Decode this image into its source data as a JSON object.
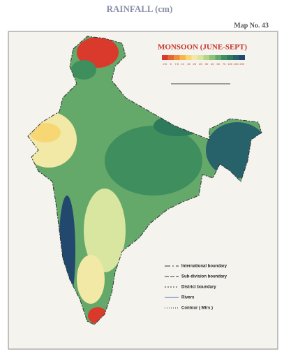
{
  "header": {
    "title": "RAINFALL (cm)",
    "map_number": "Map No. 43"
  },
  "map": {
    "title": "MONSOON (JUNE-SEPT)",
    "scale": [
      {
        "label": "2.5",
        "color": "#d93a2b"
      },
      {
        "label": "5",
        "color": "#e8652f"
      },
      {
        "label": "7.5",
        "color": "#f08f3a"
      },
      {
        "label": "10",
        "color": "#f5b64a"
      },
      {
        "label": "15",
        "color": "#f7d774"
      },
      {
        "label": "20",
        "color": "#f3e9a6"
      },
      {
        "label": "25",
        "color": "#d9e6a0"
      },
      {
        "label": "30",
        "color": "#b5d48a"
      },
      {
        "label": "40",
        "color": "#8cc17a"
      },
      {
        "label": "50",
        "color": "#64a86a"
      },
      {
        "label": "75",
        "color": "#3f8e5e"
      },
      {
        "label": "100",
        "color": "#2d7a5c"
      },
      {
        "label": "150",
        "color": "#27616a"
      },
      {
        "label": "200",
        "color": "#23486e"
      }
    ],
    "legend": [
      {
        "label": "International boundary",
        "dash": "8 3 2 3"
      },
      {
        "label": "Sub-division boundary",
        "dash": "6 2"
      },
      {
        "label": "District boundary",
        "dash": "2 2"
      },
      {
        "label": "Rivers",
        "dash": ""
      },
      {
        "label": "Contour ( Mtrs )",
        "dash": "1 2"
      }
    ]
  }
}
